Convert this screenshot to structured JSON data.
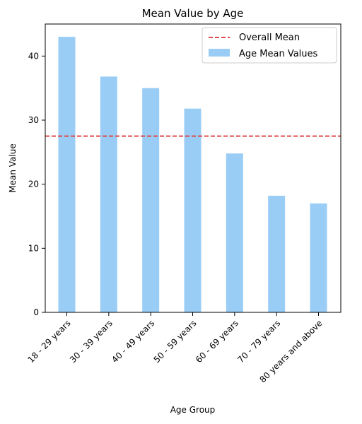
{
  "chart_data": {
    "type": "bar",
    "title": "Mean Value by Age",
    "xlabel": "Age Group",
    "ylabel": "Mean Value",
    "categories": [
      "18 - 29 years",
      "30 - 39 years",
      "40 - 49 years",
      "50 - 59 years",
      "60 - 69 years",
      "70 - 79 years",
      "80 years and above"
    ],
    "series": [
      {
        "name": "Age Mean Values",
        "values": [
          43.0,
          36.8,
          35.0,
          31.8,
          24.8,
          18.2,
          17.0
        ],
        "color": "#99cdf6"
      }
    ],
    "reference_line": {
      "name": "Overall Mean",
      "value": 27.5,
      "color": "#e04a4a",
      "style": "dashed"
    },
    "ylim": [
      0,
      45
    ],
    "yticks": [
      0,
      10,
      20,
      30,
      40
    ],
    "grid": false,
    "legend_position": "top-right"
  }
}
